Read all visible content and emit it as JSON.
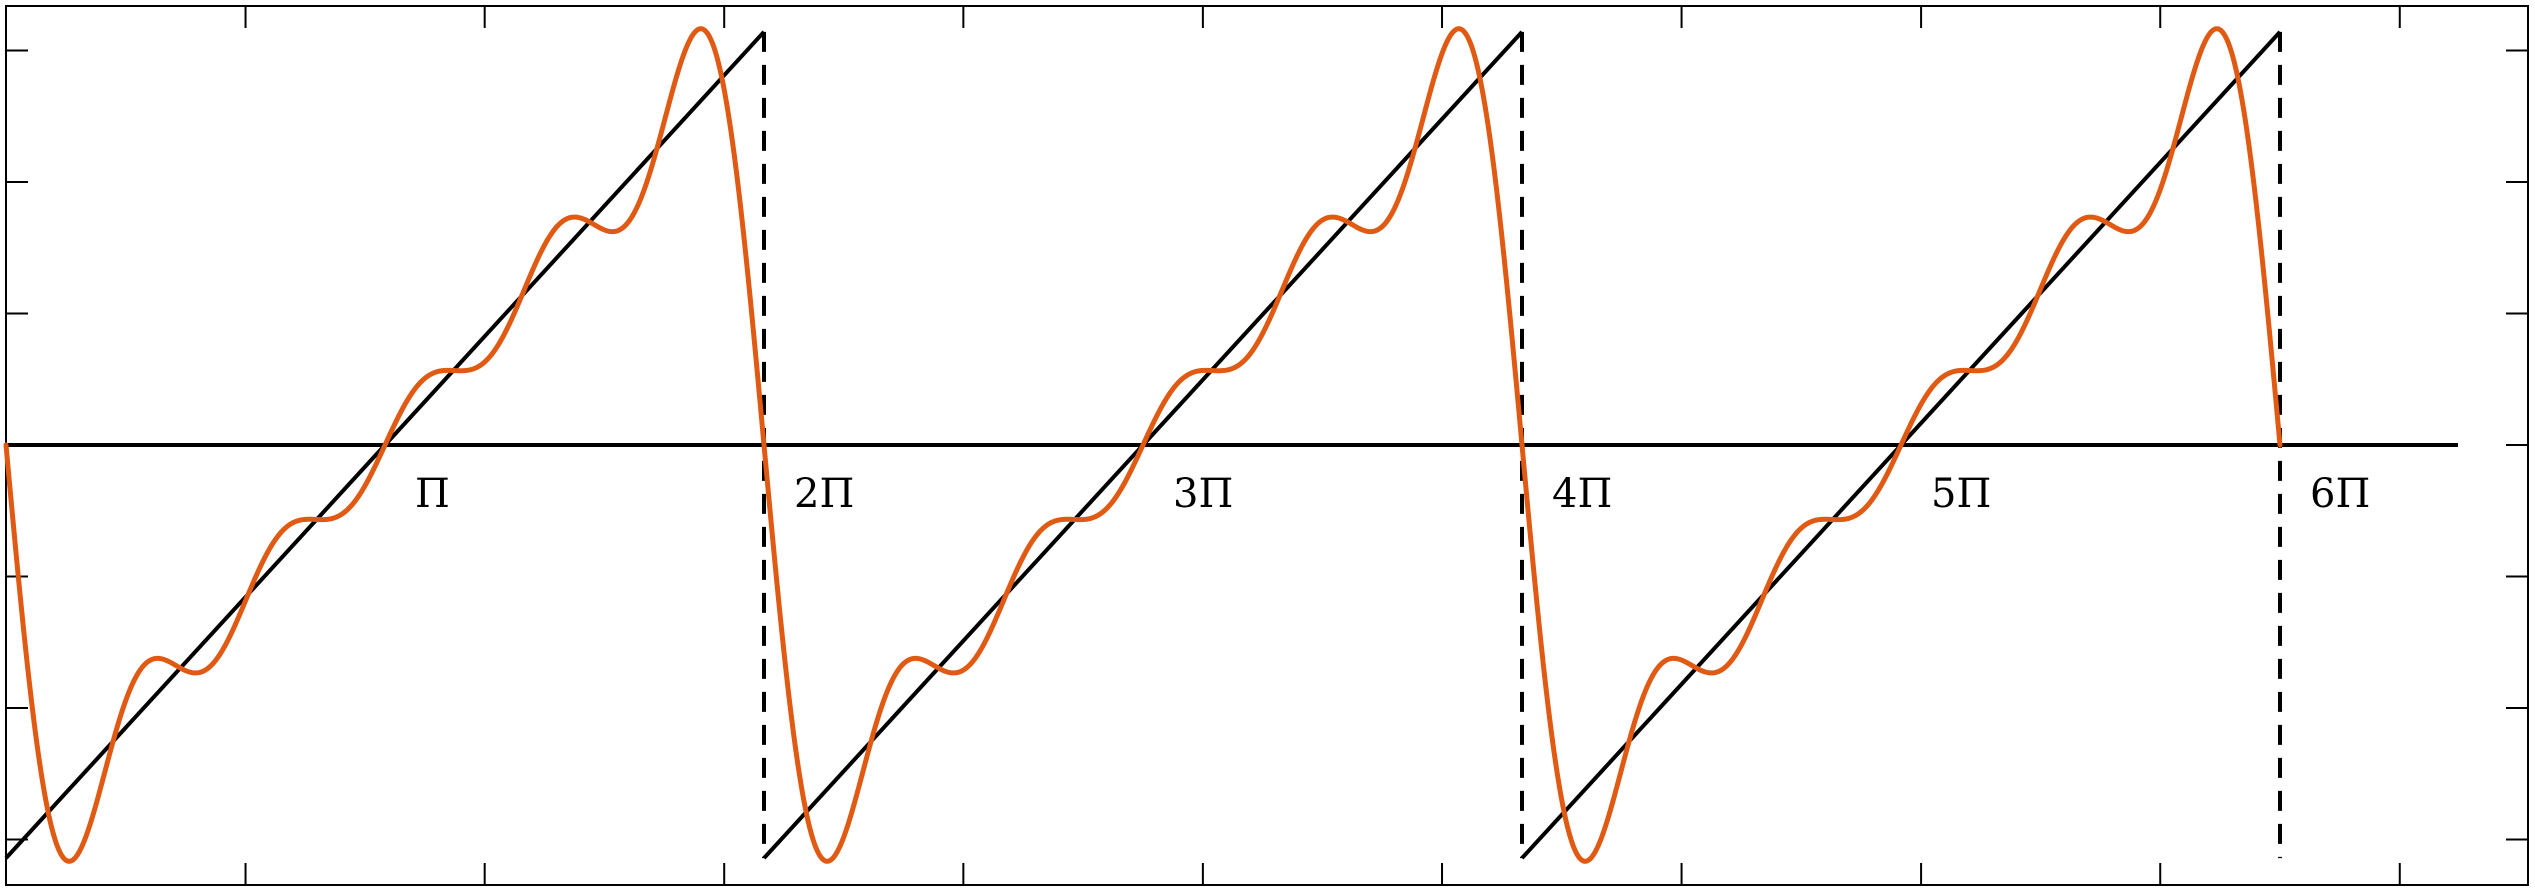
{
  "chart_data": {
    "type": "line",
    "title": "",
    "xlabel": "",
    "ylabel": "",
    "x_unit": "pi",
    "xlim": [
      0,
      6.5
    ],
    "ylim": [
      -3.3,
      3.3
    ],
    "grid": false,
    "legend": "none",
    "x_tick_labels": [
      {
        "value": 1,
        "label": "Π"
      },
      {
        "value": 2,
        "label": "2Π"
      },
      {
        "value": 3,
        "label": "3Π"
      },
      {
        "value": 4,
        "label": "4Π"
      },
      {
        "value": 5,
        "label": "5Π"
      },
      {
        "value": 6,
        "label": "6Π"
      }
    ],
    "x_ticks_top_bottom": [
      0,
      0.632,
      1.263,
      1.895,
      2.526,
      3.158,
      3.789,
      4.421,
      5.053,
      5.684,
      6.316
    ],
    "y_ticks": [
      -3,
      -2,
      -1,
      0,
      1,
      2,
      3
    ],
    "series": [
      {
        "name": "",
        "kind": "sawtooth",
        "color": "#000000",
        "segments": [
          {
            "x": [
              0,
              2
            ],
            "y": [
              -3.14159,
              3.14159
            ]
          },
          {
            "x": [
              2,
              4
            ],
            "y": [
              -3.14159,
              3.14159
            ]
          },
          {
            "x": [
              4,
              6
            ],
            "y": [
              -3.14159,
              3.14159
            ]
          }
        ],
        "discontinuities": [
          2,
          4,
          6
        ]
      },
      {
        "name": "",
        "kind": "fourier_partial_sum",
        "color": "#E05A14",
        "function": "-2*sum_{k=1..5} sin(k*x)/k",
        "terms": 5,
        "x_range": [
          0,
          6
        ]
      }
    ]
  }
}
